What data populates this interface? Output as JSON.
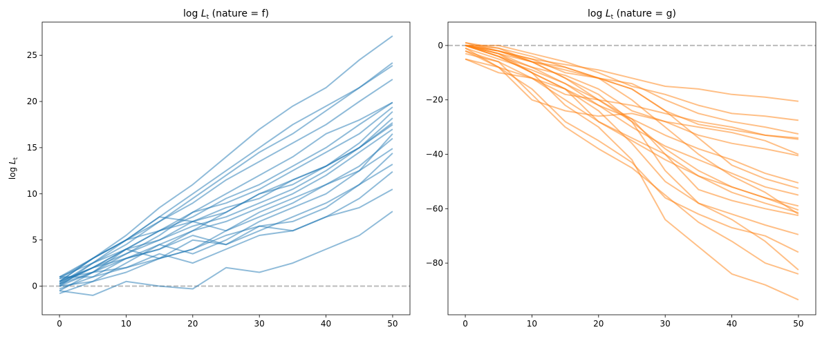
{
  "chart_data": [
    {
      "type": "line",
      "title": {
        "prefix": "log ",
        "var": "L",
        "sub": "t",
        "suffix": " (nature = f)"
      },
      "ylabel": {
        "prefix": "log ",
        "var": "L",
        "sub": "t"
      },
      "xlabel": "",
      "xlim": [
        -2.6,
        52.6
      ],
      "ylim": [
        -3.1,
        28.6
      ],
      "xticks": [
        0,
        10,
        20,
        30,
        40,
        50
      ],
      "yticks": [
        0,
        5,
        10,
        15,
        20,
        25
      ],
      "grid": false,
      "color": "#1f77b4",
      "alpha": 0.5,
      "reference_line": {
        "y": 0,
        "style": "dashed",
        "color": "#bbbbbb"
      },
      "x": [
        0,
        5,
        10,
        15,
        20,
        25,
        30,
        35,
        40,
        45,
        50
      ],
      "series": [
        {
          "values": [
            0.5,
            3,
            5.5,
            8.5,
            11,
            14,
            17,
            19.5,
            21.5,
            24.5,
            27.1
          ]
        },
        {
          "values": [
            0.3,
            2.5,
            5,
            7.5,
            10,
            12.5,
            15,
            17.5,
            19.5,
            21.5,
            24.2
          ]
        },
        {
          "values": [
            0,
            2.5,
            4.5,
            7,
            9.5,
            12,
            14.5,
            16.5,
            19,
            21.5,
            23.9
          ]
        },
        {
          "values": [
            1,
            3,
            5,
            7,
            9,
            11.5,
            13.5,
            15.5,
            17.5,
            20,
            22.4
          ]
        },
        {
          "values": [
            0.5,
            3,
            5,
            6,
            8,
            10,
            12,
            14,
            16.5,
            18,
            19.9
          ]
        },
        {
          "values": [
            0.2,
            2,
            4,
            6,
            7.5,
            9.5,
            11,
            13,
            15,
            17.5,
            19.9
          ]
        },
        {
          "values": [
            -0.5,
            1.5,
            3.5,
            5.5,
            8,
            9,
            10.5,
            12.5,
            14.5,
            16.5,
            19.4
          ]
        },
        {
          "values": [
            0.8,
            3,
            5,
            7.5,
            7,
            8,
            10,
            11.5,
            13,
            15.5,
            18.9
          ]
        },
        {
          "values": [
            0.3,
            2,
            3.5,
            5,
            6.5,
            7.5,
            9,
            10.5,
            12.5,
            15,
            18.2
          ]
        },
        {
          "values": [
            0,
            1.5,
            3,
            4.5,
            6,
            8,
            10,
            11,
            13,
            15,
            17.5
          ]
        },
        {
          "values": [
            1,
            1,
            3,
            4,
            6,
            7,
            8.5,
            10,
            12,
            14.5,
            17
          ]
        },
        {
          "values": [
            0.5,
            2,
            4,
            5,
            7,
            6,
            8,
            9.5,
            11,
            13,
            16
          ]
        },
        {
          "values": [
            -0.8,
            0.5,
            1.5,
            3,
            4,
            6,
            7.5,
            9,
            11,
            12.5,
            14.9
          ]
        },
        {
          "values": [
            0.2,
            1.5,
            4,
            3,
            5,
            4.5,
            6,
            7.5,
            9,
            11,
            14.4
          ]
        },
        {
          "values": [
            0.5,
            2,
            3,
            4,
            5.5,
            4.5,
            6.5,
            7,
            8.5,
            11,
            13.2
          ]
        },
        {
          "values": [
            -0.3,
            1,
            2,
            3,
            4,
            5.5,
            6.5,
            6,
            7.5,
            9.5,
            12.4
          ]
        },
        {
          "values": [
            0.8,
            1.5,
            2,
            3.5,
            2.5,
            4,
            5.5,
            6,
            7.5,
            8.5,
            10.5
          ]
        },
        {
          "values": [
            -0.5,
            -1,
            0.5,
            0,
            -0.3,
            2,
            1.5,
            2.5,
            4,
            5.5,
            8.1
          ]
        },
        {
          "values": [
            1,
            2.5,
            4,
            6,
            7,
            8.5,
            9.5,
            11.5,
            13,
            15,
            17.7
          ]
        },
        {
          "values": [
            0,
            0.5,
            2.5,
            4.5,
            3.5,
            5,
            7,
            8.5,
            10,
            12.5,
            16.5
          ]
        }
      ]
    },
    {
      "type": "line",
      "title": {
        "prefix": "log ",
        "var": "L",
        "sub": "t",
        "suffix": " (nature = g)"
      },
      "xlabel": "",
      "xlim": [
        -2.6,
        52.6
      ],
      "ylim": [
        -99,
        8.6
      ],
      "xticks": [
        0,
        10,
        20,
        30,
        40,
        50
      ],
      "yticks": [
        0,
        -20,
        -40,
        -60,
        -80
      ],
      "grid": false,
      "color": "#ff7f0e",
      "alpha": 0.5,
      "reference_line": {
        "y": 0,
        "style": "dashed",
        "color": "#bbbbbb"
      },
      "x": [
        0,
        5,
        10,
        15,
        20,
        25,
        30,
        35,
        40,
        45,
        50
      ],
      "series": [
        {
          "values": [
            0,
            -2,
            -5,
            -7,
            -9,
            -12,
            -15,
            -16,
            -18,
            -19,
            -20.5
          ]
        },
        {
          "values": [
            0,
            0,
            -3,
            -6,
            -10,
            -15,
            -18,
            -22,
            -25,
            -26,
            -27.5
          ]
        },
        {
          "values": [
            1,
            -1,
            -4,
            -8,
            -12,
            -14,
            -20,
            -25,
            -28,
            -30,
            -32.5
          ]
        },
        {
          "values": [
            0,
            -2,
            -6,
            -9,
            -12,
            -16,
            -24,
            -29,
            -31,
            -33,
            -34
          ]
        },
        {
          "values": [
            -2,
            -8,
            -12,
            -18,
            -20,
            -22,
            -25,
            -28,
            -30,
            -33,
            -34.5
          ]
        },
        {
          "values": [
            0,
            -3,
            -8,
            -11,
            -16,
            -24,
            -28,
            -33,
            -36,
            -38,
            -40.5
          ]
        },
        {
          "values": [
            -5,
            -10,
            -12,
            -16,
            -22,
            -27,
            -33,
            -38,
            -42,
            -47,
            -50.5
          ]
        },
        {
          "values": [
            1,
            -2,
            -5,
            -10,
            -12,
            -16,
            -24,
            -34,
            -44,
            -49,
            -52.5
          ]
        },
        {
          "values": [
            0,
            -4,
            -8,
            -14,
            -22,
            -30,
            -37,
            -42,
            -47,
            -52,
            -55
          ]
        },
        {
          "values": [
            0,
            -1,
            -6,
            -12,
            -20,
            -28,
            -38,
            -46,
            -52,
            -56,
            -59
          ]
        },
        {
          "values": [
            -3,
            -6,
            -12,
            -20,
            -28,
            -35,
            -42,
            -48,
            -52,
            -56,
            -60.5
          ]
        },
        {
          "values": [
            0,
            -3,
            -10,
            -16,
            -28,
            -34,
            -40,
            -48,
            -54,
            -58,
            -61.5
          ]
        },
        {
          "values": [
            -1,
            -5,
            -9,
            -14,
            -20,
            -27,
            -40,
            -53,
            -57,
            -60,
            -62.5
          ]
        },
        {
          "values": [
            0,
            -4,
            -10,
            -16,
            -24,
            -36,
            -50,
            -58,
            -62,
            -66,
            -69.5
          ]
        },
        {
          "values": [
            -1,
            -8,
            -16,
            -28,
            -35,
            -43,
            -56,
            -62,
            -67,
            -70,
            -76
          ]
        },
        {
          "values": [
            0,
            -2,
            -6,
            -12,
            -18,
            -28,
            -46,
            -58,
            -64,
            -72,
            -82.5
          ]
        },
        {
          "values": [
            -2,
            -6,
            -18,
            -30,
            -38,
            -45,
            -55,
            -65,
            -72,
            -80,
            -84
          ]
        },
        {
          "values": [
            0,
            -4,
            -10,
            -22,
            -30,
            -42,
            -64,
            -74,
            -84,
            -88,
            -93.5
          ]
        },
        {
          "values": [
            -5,
            -8,
            -20,
            -24,
            -26,
            -25,
            -28,
            -30,
            -32,
            -35,
            -40
          ]
        },
        {
          "values": [
            0,
            -3,
            -6,
            -8,
            -12,
            -20,
            -30,
            -40,
            -48,
            -54,
            -62
          ]
        }
      ]
    }
  ]
}
